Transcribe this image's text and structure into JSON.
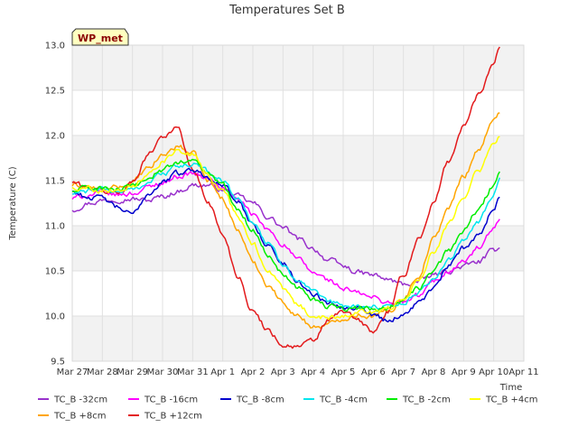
{
  "chart_data": {
    "type": "line",
    "title": "Temperatures Set B",
    "xlabel": "Time",
    "ylabel": "Temperature (C)",
    "badge": "WP_met",
    "xlim": [
      0,
      15
    ],
    "ylim": [
      9.5,
      13.0
    ],
    "x_ticks": [
      {
        "x": 0,
        "label": "Mar 27"
      },
      {
        "x": 1,
        "label": "Mar 28"
      },
      {
        "x": 2,
        "label": "Mar 29"
      },
      {
        "x": 3,
        "label": "Mar 30"
      },
      {
        "x": 4,
        "label": "Mar 31"
      },
      {
        "x": 5,
        "label": "Apr 1"
      },
      {
        "x": 6,
        "label": "Apr 2"
      },
      {
        "x": 7,
        "label": "Apr 3"
      },
      {
        "x": 8,
        "label": "Apr 4"
      },
      {
        "x": 9,
        "label": "Apr 5"
      },
      {
        "x": 10,
        "label": "Apr 6"
      },
      {
        "x": 11,
        "label": "Apr 7"
      },
      {
        "x": 12,
        "label": "Apr 8"
      },
      {
        "x": 13,
        "label": "Apr 9"
      },
      {
        "x": 14,
        "label": "Apr 10"
      },
      {
        "x": 15,
        "label": "Apr 11"
      }
    ],
    "y_ticks": [
      {
        "y": 9.5,
        "label": "9.5"
      },
      {
        "y": 10.0,
        "label": "10.0"
      },
      {
        "y": 10.5,
        "label": "10.5"
      },
      {
        "y": 11.0,
        "label": "11.0"
      },
      {
        "y": 11.5,
        "label": "11.5"
      },
      {
        "y": 12.0,
        "label": "12.0"
      },
      {
        "y": 12.5,
        "label": "12.5"
      },
      {
        "y": 13.0,
        "label": "13.0"
      }
    ],
    "bands": [
      [
        9.5,
        10.0
      ],
      [
        10.5,
        11.0
      ],
      [
        11.5,
        12.0
      ],
      [
        12.5,
        13.0
      ]
    ],
    "band_color": "#f2f2f2",
    "grid": true,
    "legend_position": "bottom",
    "series": [
      {
        "name": "TC_B -32cm",
        "color": "#9932cc",
        "x": [
          0,
          0.5,
          1,
          1.5,
          2,
          2.5,
          3,
          3.5,
          4,
          4.5,
          5,
          5.5,
          6,
          6.5,
          7,
          7.5,
          8,
          8.5,
          9,
          9.5,
          10,
          10.5,
          11,
          11.5,
          12,
          12.5,
          13,
          13.5,
          14,
          14.2
        ],
        "y": [
          11.18,
          11.25,
          11.28,
          11.3,
          11.3,
          11.28,
          11.32,
          11.38,
          11.45,
          11.45,
          11.4,
          11.32,
          11.25,
          11.1,
          10.98,
          10.85,
          10.75,
          10.62,
          10.55,
          10.48,
          10.45,
          10.4,
          10.35,
          10.38,
          10.45,
          10.5,
          10.55,
          10.6,
          10.72,
          10.78
        ]
      },
      {
        "name": "TC_B +8cm",
        "color": "#ffa500",
        "x": [
          0,
          0.5,
          1,
          1.5,
          2,
          2.5,
          3,
          3.5,
          4,
          4.5,
          5,
          5.5,
          6,
          6.5,
          7,
          7.5,
          8,
          8.5,
          9,
          9.5,
          10,
          10.5,
          11,
          11.5,
          12,
          12.5,
          13,
          13.5,
          14,
          14.2
        ],
        "y": [
          11.45,
          11.42,
          11.4,
          11.42,
          11.48,
          11.62,
          11.78,
          11.88,
          11.8,
          11.5,
          11.3,
          10.95,
          10.6,
          10.35,
          10.15,
          10.0,
          9.88,
          9.9,
          9.98,
          10.02,
          10.0,
          10.05,
          10.2,
          10.45,
          10.85,
          11.2,
          11.55,
          11.85,
          12.15,
          12.28
        ]
      },
      {
        "name": "TC_B -16cm",
        "color": "#ff00ff",
        "x": [
          0,
          0.5,
          1,
          1.5,
          2,
          2.5,
          3,
          3.5,
          4,
          4.5,
          5,
          5.5,
          6,
          6.5,
          7,
          7.5,
          8,
          8.5,
          9,
          9.5,
          10,
          10.5,
          11,
          11.5,
          12,
          12.5,
          13,
          13.5,
          14,
          14.2
        ],
        "y": [
          11.3,
          11.34,
          11.36,
          11.34,
          11.36,
          11.42,
          11.48,
          11.55,
          11.58,
          11.52,
          11.42,
          11.28,
          11.12,
          10.95,
          10.8,
          10.62,
          10.48,
          10.4,
          10.3,
          10.25,
          10.2,
          10.15,
          10.15,
          10.22,
          10.38,
          10.5,
          10.6,
          10.75,
          10.95,
          11.05
        ]
      },
      {
        "name": "TC_B +12cm",
        "color": "#e31a1c",
        "x": [
          0,
          0.5,
          1,
          1.5,
          2,
          2.5,
          3,
          3.5,
          4,
          4.5,
          5,
          5.5,
          6,
          6.5,
          7,
          7.5,
          8,
          8.5,
          9,
          9.5,
          10,
          10.5,
          11,
          11.5,
          12,
          12.5,
          13,
          13.5,
          14,
          14.2
        ],
        "y": [
          11.48,
          11.42,
          11.38,
          11.36,
          11.48,
          11.78,
          12.0,
          12.08,
          11.62,
          11.28,
          10.9,
          10.45,
          10.05,
          9.85,
          9.68,
          9.66,
          9.72,
          9.95,
          10.05,
          9.95,
          9.82,
          10.05,
          10.45,
          10.85,
          11.25,
          11.72,
          12.1,
          12.45,
          12.82,
          12.98
        ]
      },
      {
        "name": "TC_B -8cm",
        "color": "#0000cd",
        "x": [
          0,
          0.5,
          1,
          1.5,
          2,
          2.5,
          3,
          3.5,
          4,
          4.5,
          5,
          5.5,
          6,
          6.5,
          7,
          7.5,
          8,
          8.5,
          9,
          9.5,
          10,
          10.5,
          11,
          11.5,
          12,
          12.5,
          13,
          13.5,
          14,
          14.2
        ],
        "y": [
          11.38,
          11.32,
          11.3,
          11.2,
          11.12,
          11.35,
          11.48,
          11.58,
          11.62,
          11.55,
          11.45,
          11.25,
          11.02,
          10.78,
          10.58,
          10.38,
          10.25,
          10.15,
          10.12,
          10.1,
          10.02,
          9.95,
          10.02,
          10.15,
          10.3,
          10.55,
          10.75,
          10.9,
          11.2,
          11.33
        ]
      },
      {
        "name": "TC_B -4cm",
        "color": "#00e5ee",
        "x": [
          0,
          0.5,
          1,
          1.5,
          2,
          2.5,
          3,
          3.5,
          4,
          4.5,
          5,
          5.5,
          6,
          6.5,
          7,
          7.5,
          8,
          8.5,
          9,
          9.5,
          10,
          10.5,
          11,
          11.5,
          12,
          12.5,
          13,
          13.5,
          14,
          14.2
        ],
        "y": [
          11.35,
          11.38,
          11.4,
          11.38,
          11.4,
          11.48,
          11.58,
          11.65,
          11.68,
          11.6,
          11.5,
          11.3,
          11.05,
          10.8,
          10.58,
          10.4,
          10.25,
          10.15,
          10.12,
          10.1,
          10.1,
          10.12,
          10.15,
          10.25,
          10.42,
          10.62,
          10.82,
          11.05,
          11.35,
          11.5
        ]
      },
      {
        "name": "TC_B -2cm",
        "color": "#00ee00",
        "x": [
          0,
          0.5,
          1,
          1.5,
          2,
          2.5,
          3,
          3.5,
          4,
          4.5,
          5,
          5.5,
          6,
          6.5,
          7,
          7.5,
          8,
          8.5,
          9,
          9.5,
          10,
          10.5,
          11,
          11.5,
          12,
          12.5,
          13,
          13.5,
          14,
          14.2
        ],
        "y": [
          11.38,
          11.42,
          11.42,
          11.4,
          11.42,
          11.52,
          11.62,
          11.7,
          11.72,
          11.58,
          11.45,
          11.2,
          10.95,
          10.68,
          10.48,
          10.32,
          10.2,
          10.1,
          10.08,
          10.08,
          10.08,
          10.1,
          10.18,
          10.3,
          10.5,
          10.72,
          10.95,
          11.18,
          11.45,
          11.58
        ]
      },
      {
        "name": "TC_B +4cm",
        "color": "#ffff00",
        "x": [
          0,
          0.5,
          1,
          1.5,
          2,
          2.5,
          3,
          3.5,
          4,
          4.5,
          5,
          5.5,
          6,
          6.5,
          7,
          7.5,
          8,
          8.5,
          9,
          9.5,
          10,
          10.5,
          11,
          11.5,
          12,
          12.5,
          13,
          13.5,
          14,
          14.2
        ],
        "y": [
          11.42,
          11.42,
          11.4,
          11.4,
          11.45,
          11.58,
          11.72,
          11.82,
          11.78,
          11.55,
          11.4,
          11.1,
          10.8,
          10.52,
          10.3,
          10.12,
          10.0,
          9.98,
          10.02,
          10.05,
          10.05,
          10.08,
          10.2,
          10.4,
          10.72,
          11.02,
          11.35,
          11.62,
          11.88,
          11.98
        ]
      }
    ]
  }
}
